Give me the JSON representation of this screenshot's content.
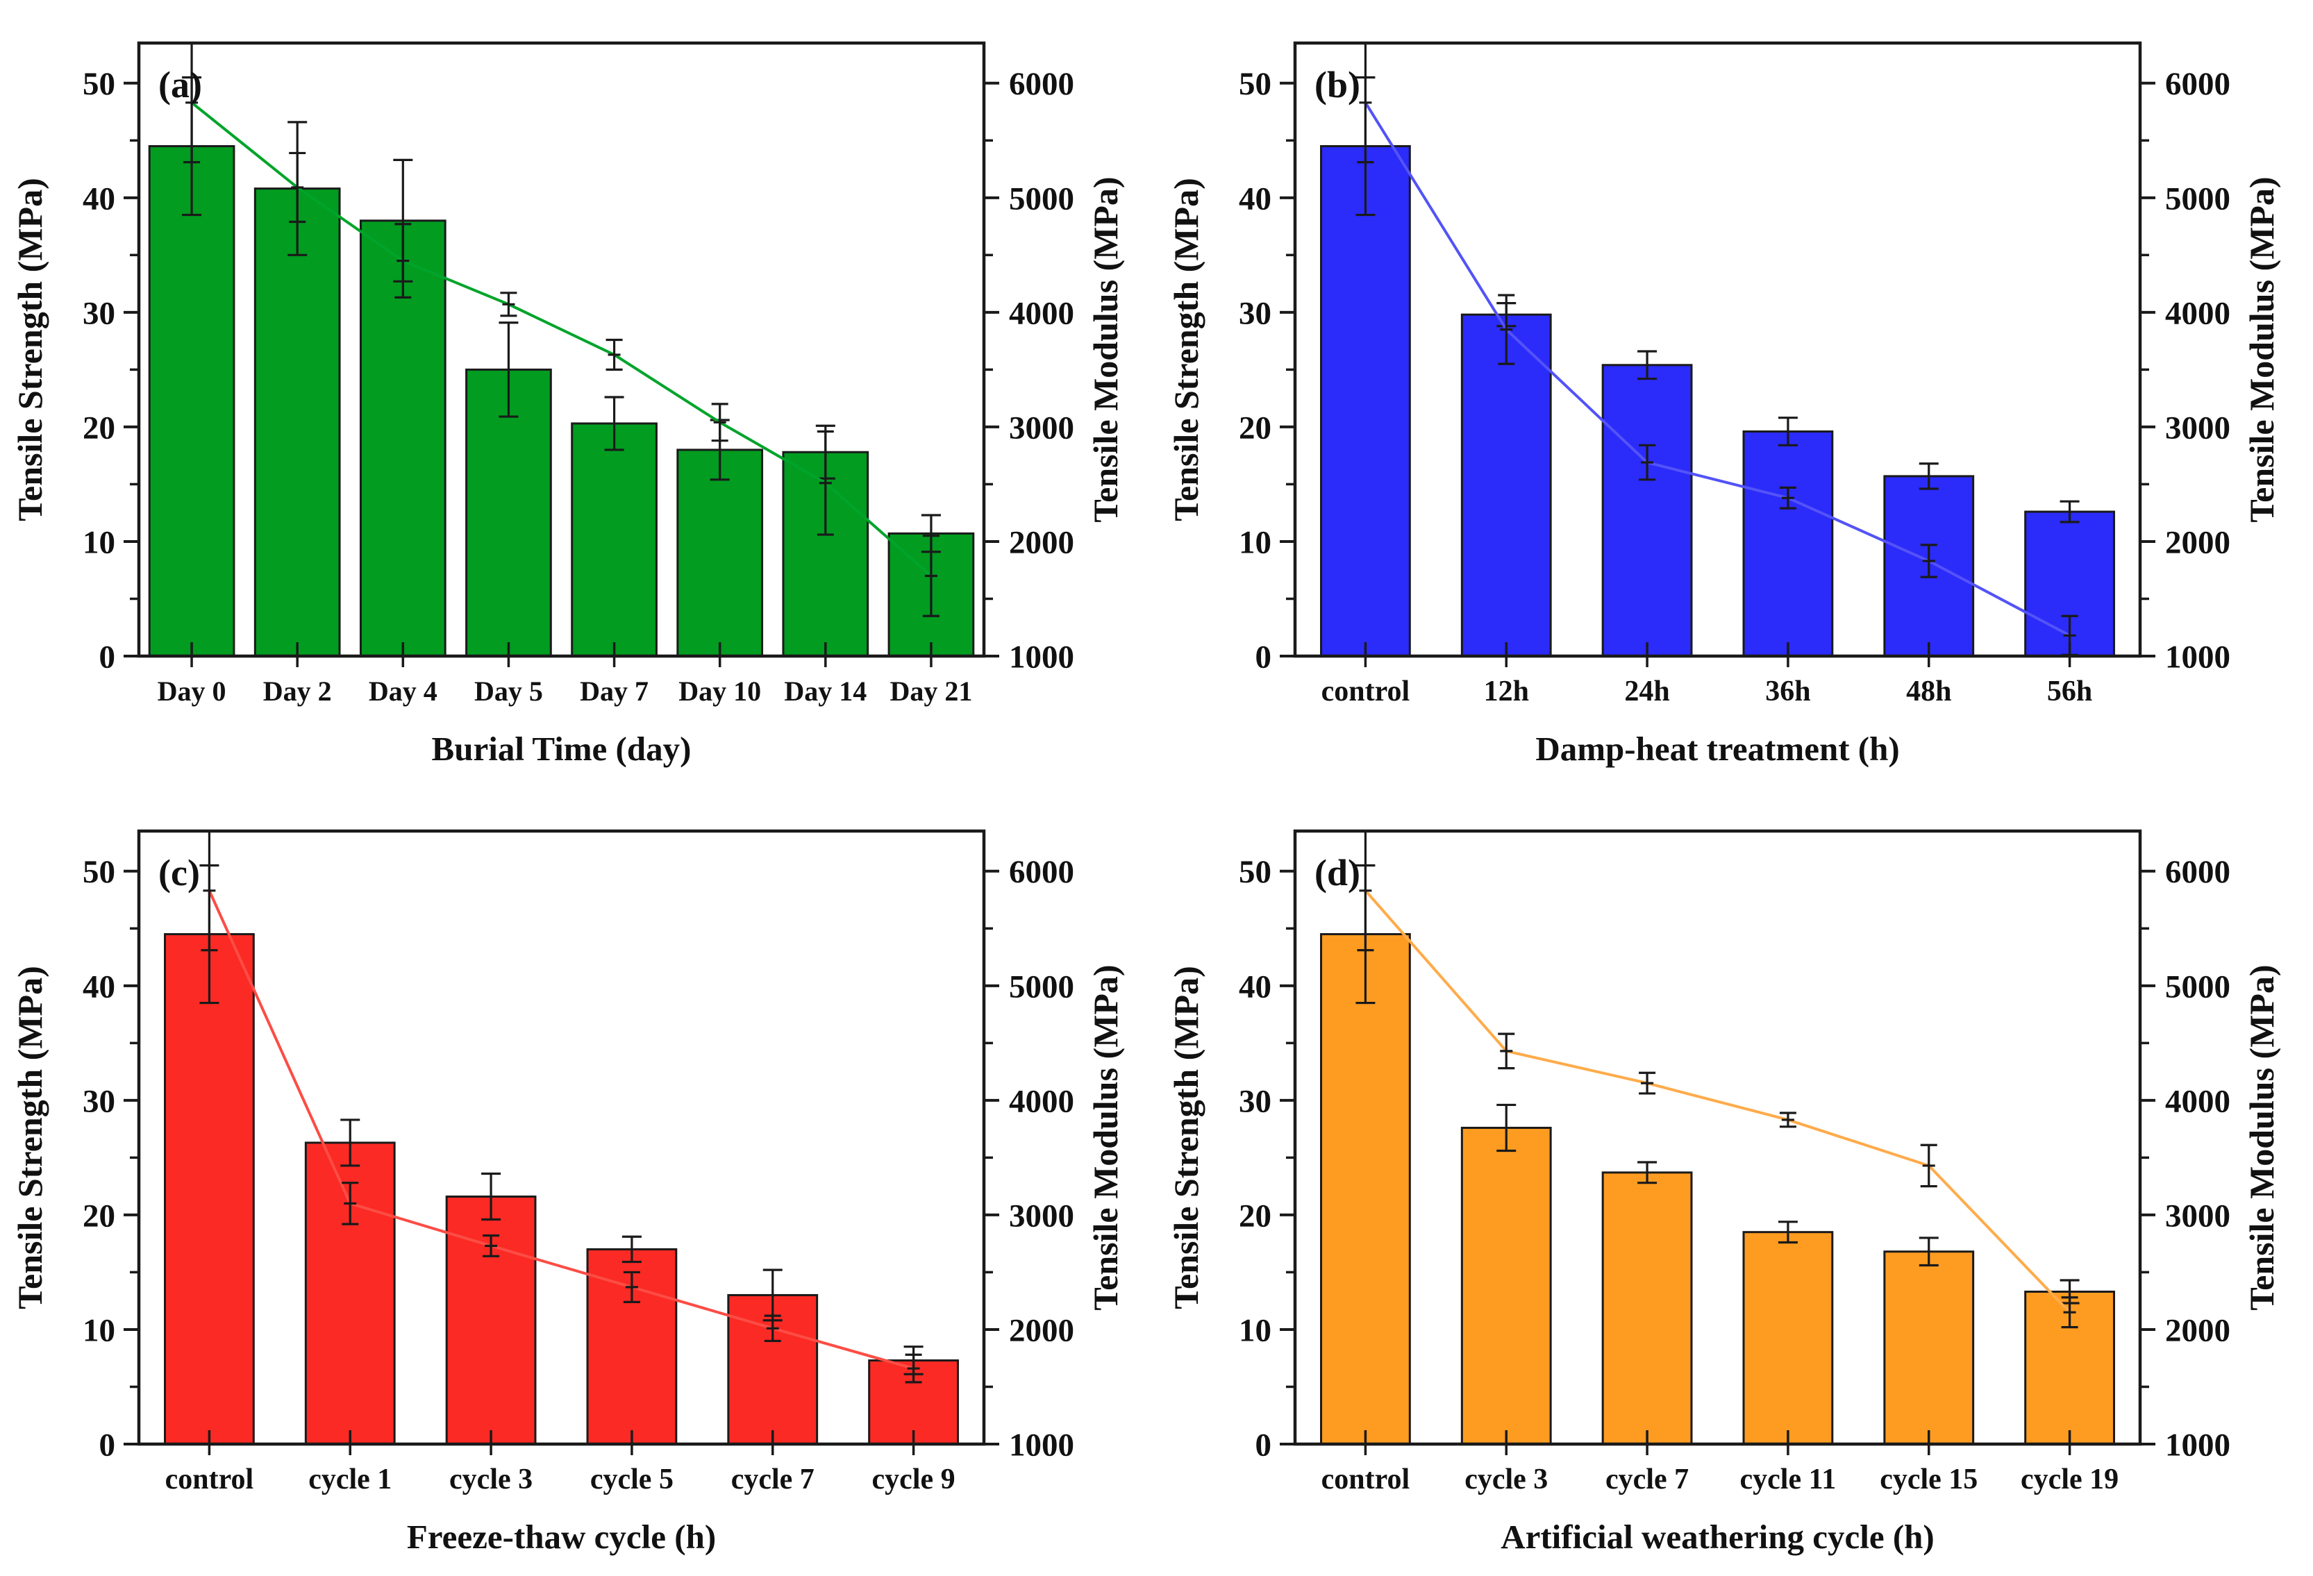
{
  "figure": {
    "background": "#ffffff",
    "description": "Four-panel figure of mechanical property degradation under different aging treatments"
  },
  "axes": {
    "left_label": "Tensile Strength (MPa)",
    "right_label": "Tensile Modulus (MPa)",
    "left_ticks": [
      0,
      10,
      20,
      30,
      40,
      50
    ],
    "left_minor_ticks": [
      5,
      15,
      25,
      35,
      45
    ],
    "right_ticks": [
      1000,
      2000,
      3000,
      4000,
      5000,
      6000
    ],
    "right_minor_ticks": [
      1500,
      2500,
      3500,
      4500,
      5500
    ],
    "left_range": [
      0,
      53.5
    ],
    "right_range": [
      1000,
      6350
    ],
    "grid": false,
    "frame_color": "#1a1a1a",
    "error_bar_color": "#1a1a1a"
  },
  "chart_data": [
    {
      "type": "bar+line",
      "panel_label": "(a)",
      "xlabel": "Burial Time (day)",
      "bar_color": "#019c20",
      "line_color": "#00a42a",
      "categories": [
        "Day 0",
        "Day 2",
        "Day 4",
        "Day 5",
        "Day 7",
        "Day 10",
        "Day 14",
        "Day 21"
      ],
      "series": [
        {
          "name": "Tensile Strength (MPa)",
          "axis": "left",
          "values": [
            44.5,
            40.8,
            38.0,
            25.0,
            20.3,
            18.0,
            17.8,
            10.7
          ],
          "errors": [
            6.0,
            5.8,
            5.3,
            4.1,
            2.3,
            2.6,
            2.3,
            1.6
          ]
        },
        {
          "name": "Tensile Modulus (MPa)",
          "axis": "right",
          "values": [
            5830,
            5090,
            4450,
            4070,
            3630,
            3040,
            2510,
            1700
          ],
          "errors": [
            520,
            300,
            320,
            100,
            130,
            160,
            450,
            350
          ]
        }
      ]
    },
    {
      "type": "bar+line",
      "panel_label": "(b)",
      "xlabel": "Damp-heat treatment (h)",
      "bar_color": "#2b2bfa",
      "line_color": "#5353f8",
      "categories": [
        "control",
        "12h",
        "24h",
        "36h",
        "48h",
        "56h"
      ],
      "series": [
        {
          "name": "Tensile Strength (MPa)",
          "axis": "left",
          "values": [
            44.5,
            29.8,
            25.4,
            19.6,
            15.7,
            12.6
          ],
          "errors": [
            6.0,
            1.0,
            1.2,
            1.2,
            1.1,
            0.9
          ]
        },
        {
          "name": "Tensile Modulus (MPa)",
          "axis": "right",
          "values": [
            5830,
            3850,
            2690,
            2380,
            1830,
            1180
          ],
          "errors": [
            520,
            300,
            150,
            90,
            140,
            170
          ]
        }
      ]
    },
    {
      "type": "bar+line",
      "panel_label": "(c)",
      "xlabel": "Freeze-thaw cycle (h)",
      "bar_color": "#fb2a25",
      "line_color": "#fc4d45",
      "categories": [
        "control",
        "cycle 1",
        "cycle 3",
        "cycle 5",
        "cycle 7",
        "cycle 9"
      ],
      "series": [
        {
          "name": "Tensile Strength (MPa)",
          "axis": "left",
          "values": [
            44.5,
            26.3,
            21.6,
            17.0,
            13.0,
            7.3
          ],
          "errors": [
            6.0,
            2.0,
            2.0,
            1.1,
            2.2,
            1.2
          ]
        },
        {
          "name": "Tensile Modulus (MPa)",
          "axis": "right",
          "values": [
            5830,
            3100,
            2730,
            2370,
            2010,
            1660
          ],
          "errors": [
            520,
            180,
            90,
            130,
            110,
            120
          ]
        }
      ]
    },
    {
      "type": "bar+line",
      "panel_label": "(d)",
      "xlabel": "Artificial weathering cycle (h)",
      "bar_color": "#fd9c21",
      "line_color": "#ffab4a",
      "categories": [
        "control",
        "cycle 3",
        "cycle 7",
        "cycle 11",
        "cycle 15",
        "cycle 19"
      ],
      "series": [
        {
          "name": "Tensile Strength (MPa)",
          "axis": "left",
          "values": [
            44.5,
            27.6,
            23.7,
            18.5,
            16.8,
            13.3
          ],
          "errors": [
            6.0,
            2.0,
            0.9,
            0.9,
            1.2,
            1.0
          ]
        },
        {
          "name": "Tensile Modulus (MPa)",
          "axis": "right",
          "values": [
            5830,
            4430,
            4150,
            3830,
            3430,
            2150
          ],
          "errors": [
            520,
            150,
            90,
            60,
            180,
            130
          ]
        }
      ]
    }
  ]
}
